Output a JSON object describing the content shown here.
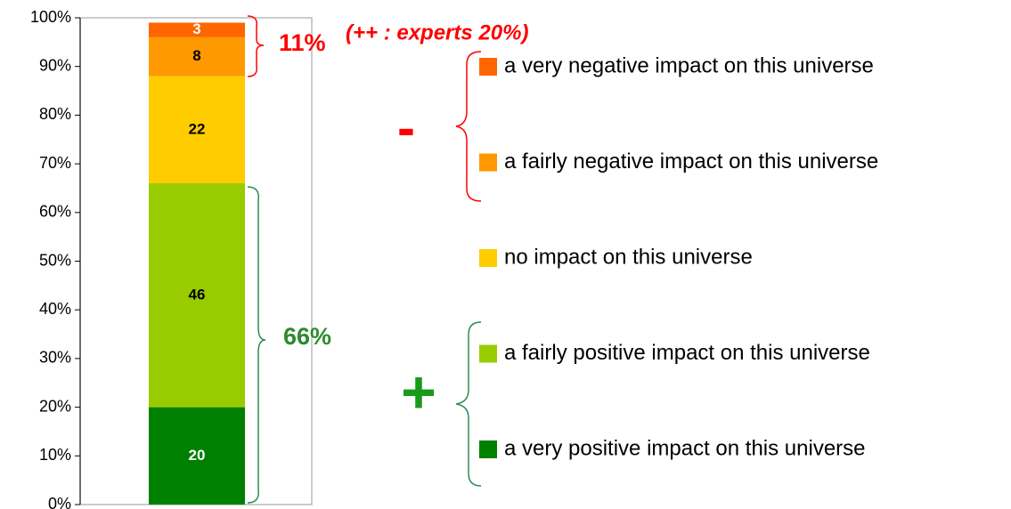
{
  "chart_data": {
    "type": "stacked_bar",
    "categories": [
      null
    ],
    "series": [
      {
        "name": "a very positive impact on this universe",
        "color": "#008000",
        "label_color": "#ffffff",
        "values": [
          20
        ]
      },
      {
        "name": "a fairly positive impact on this universe",
        "color": "#99cc00",
        "label_color": "#000000",
        "values": [
          46
        ]
      },
      {
        "name": "no impact on this universe",
        "color": "#ffcc00",
        "label_color": "#000000",
        "values": [
          22
        ]
      },
      {
        "name": "a fairly negative impact on this universe",
        "color": "#ff9900",
        "label_color": "#000000",
        "values": [
          8
        ]
      },
      {
        "name": "a very negative impact on this universe",
        "color": "#ff6600",
        "label_color": "#ffffff",
        "values": [
          3
        ]
      }
    ],
    "ylim": [
      0,
      100
    ],
    "yticks": [
      {
        "value": 0,
        "label": "0%"
      },
      {
        "value": 10,
        "label": "10%"
      },
      {
        "value": 20,
        "label": "20%"
      },
      {
        "value": 30,
        "label": "30%"
      },
      {
        "value": 40,
        "label": "40%"
      },
      {
        "value": 50,
        "label": "50%"
      },
      {
        "value": 60,
        "label": "60%"
      },
      {
        "value": 70,
        "label": "70%"
      },
      {
        "value": 80,
        "label": "80%"
      },
      {
        "value": 90,
        "label": "90%"
      },
      {
        "value": 100,
        "label": "100%"
      }
    ],
    "annotations": [
      "11%",
      "(++ : experts 20%)",
      "66%",
      "-",
      "+"
    ]
  }
}
